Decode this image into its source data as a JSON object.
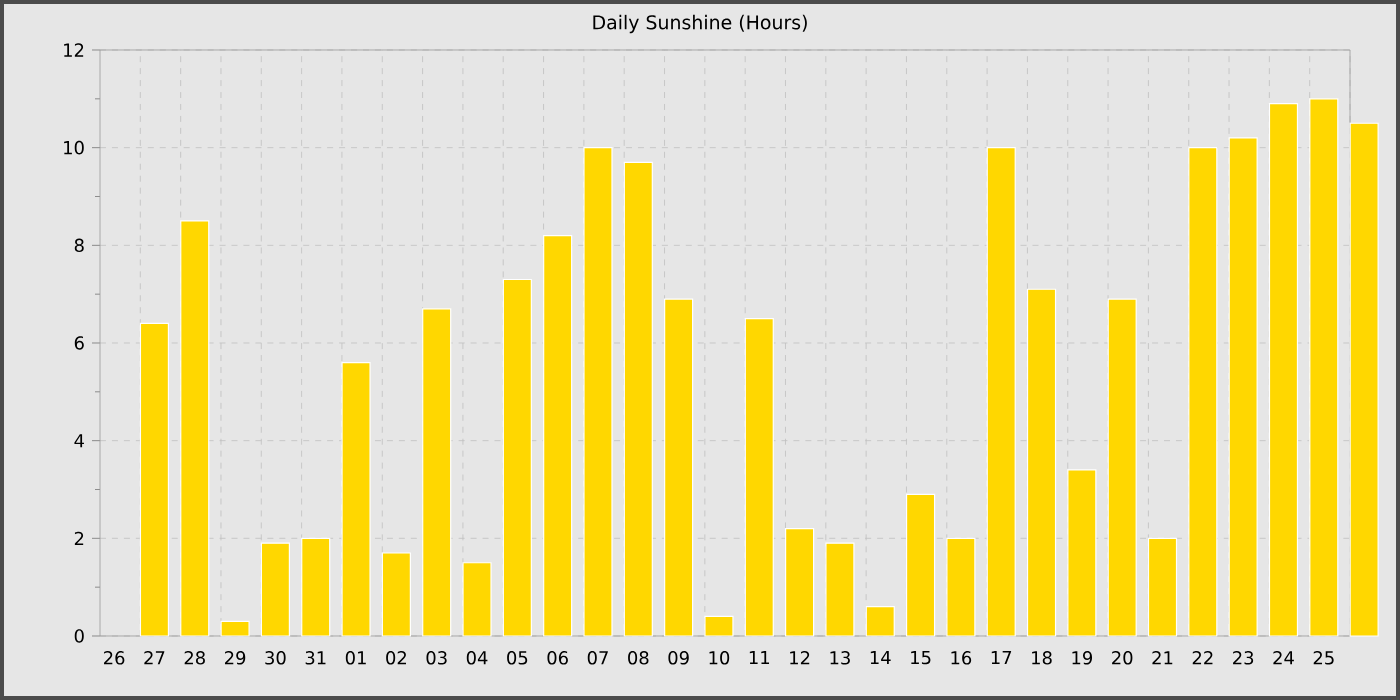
{
  "chart_data": {
    "type": "bar",
    "title": "Daily Sunshine (Hours)",
    "categories": [
      "26",
      "27",
      "28",
      "29",
      "30",
      "31",
      "01",
      "02",
      "03",
      "04",
      "05",
      "06",
      "07",
      "08",
      "09",
      "10",
      "11",
      "12",
      "13",
      "14",
      "15",
      "16",
      "17",
      "18",
      "19",
      "20",
      "21",
      "22",
      "23",
      "24",
      "25",
      null
    ],
    "values": [
      null,
      6.4,
      8.5,
      0.3,
      1.9,
      2.0,
      5.6,
      1.7,
      6.7,
      1.5,
      7.3,
      8.2,
      10.0,
      9.7,
      6.9,
      0.4,
      6.5,
      2.2,
      1.9,
      0.6,
      2.9,
      2.0,
      10.0,
      7.1,
      3.4,
      6.9,
      2.0,
      10.0,
      10.2,
      10.9,
      11.0,
      10.5
    ],
    "color": "#ffd700",
    "ylim": [
      0,
      12
    ],
    "yticks": [
      0,
      2,
      4,
      6,
      8,
      10,
      12
    ],
    "grid": true
  }
}
